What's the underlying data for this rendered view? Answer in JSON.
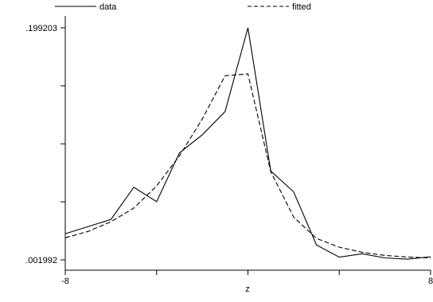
{
  "chart_data": {
    "type": "line",
    "title": "",
    "xlabel": "z",
    "ylabel": "",
    "xlim": [
      -8,
      8
    ],
    "ylim": [
      0.001992,
      0.199203
    ],
    "x_ticks": [
      -8,
      -4,
      0,
      4,
      8
    ],
    "x_tick_labels": [
      "-8",
      "",
      "",
      "",
      "8"
    ],
    "y_ticks": [
      0.001992,
      0.0513,
      0.1006,
      0.1499,
      0.199203
    ],
    "y_tick_labels": [
      ".001992",
      "",
      "",
      "",
      ".199203"
    ],
    "grid": false,
    "legend": "top",
    "series": [
      {
        "name": "data",
        "style": "solid",
        "x": [
          -8,
          -7,
          -6,
          -5,
          -4,
          -3,
          -2,
          -1,
          0,
          1,
          2,
          3,
          4,
          5,
          6,
          7,
          8
        ],
        "y": [
          0.0242,
          0.0303,
          0.0364,
          0.0637,
          0.0515,
          0.0929,
          0.1082,
          0.1281,
          0.199203,
          0.0775,
          0.0598,
          0.0147,
          0.0043,
          0.0072,
          0.0037,
          0.0026,
          0.0047
        ]
      },
      {
        "name": "fitted",
        "style": "dashed",
        "x": [
          -8,
          -7,
          -6,
          -5,
          -4,
          -3,
          -2,
          -1,
          0,
          1,
          2,
          3,
          4,
          5,
          6,
          7,
          8
        ],
        "y": [
          0.0208,
          0.0262,
          0.0344,
          0.046,
          0.0649,
          0.0903,
          0.1217,
          0.1585,
          0.16,
          0.0768,
          0.0384,
          0.0202,
          0.0127,
          0.0085,
          0.0058,
          0.0044,
          0.0036
        ]
      }
    ]
  }
}
